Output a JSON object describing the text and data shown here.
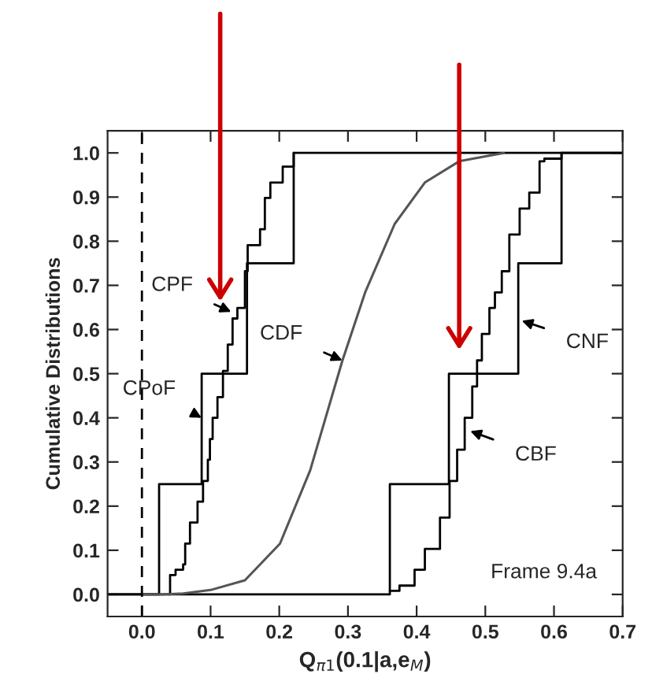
{
  "chart_data": {
    "type": "line",
    "xlabel": "Q$_{π1}$(0.1|a,e$_{M}$)",
    "ylabel": "Cumulative Distributions",
    "series": [
      {
        "type": "step",
        "color": "#000000",
        "x": [
          -0.05,
          0.025,
          0.087,
          0.153,
          0.221,
          0.7
        ],
        "values": [
          0,
          0.25,
          0.5,
          0.75,
          1.0,
          1.0
        ]
      },
      {
        "type": "step",
        "color": "#000000",
        "x": [
          -0.05,
          0.361,
          0.447,
          0.548,
          0.611,
          0.7
        ],
        "values": [
          0,
          0.25,
          0.5,
          0.75,
          1.0,
          1.0
        ]
      },
      {
        "type": "step",
        "color": "#000000",
        "x": [
          0.039,
          0.041,
          0.049,
          0.06,
          0.063,
          0.07,
          0.081,
          0.089,
          0.096,
          0.099,
          0.103,
          0.11,
          0.118,
          0.125,
          0.132,
          0.139,
          0.15,
          0.154,
          0.172,
          0.179,
          0.187,
          0.205,
          0.221
        ],
        "values": [
          0,
          0.044,
          0.056,
          0.068,
          0.115,
          0.163,
          0.21,
          0.257,
          0.305,
          0.352,
          0.4,
          0.447,
          0.506,
          0.566,
          0.625,
          0.649,
          0.732,
          0.791,
          0.827,
          0.898,
          0.933,
          0.969,
          1.0
        ]
      },
      {
        "type": "step",
        "color": "#000000",
        "x": [
          0.361,
          0.375,
          0.397,
          0.412,
          0.434,
          0.448,
          0.459,
          0.47,
          0.481,
          0.488,
          0.495,
          0.506,
          0.514,
          0.524,
          0.535,
          0.55,
          0.564,
          0.579,
          0.586,
          0.611
        ],
        "values": [
          0.008,
          0.02,
          0.056,
          0.103,
          0.174,
          0.257,
          0.328,
          0.4,
          0.471,
          0.53,
          0.59,
          0.649,
          0.684,
          0.732,
          0.815,
          0.874,
          0.91,
          0.981,
          0.987,
          1.0
        ]
      },
      {
        "color": "#555555",
        "x": [
          0.0,
          0.03,
          0.06,
          0.1,
          0.15,
          0.201,
          0.245,
          0.292,
          0.325,
          0.368,
          0.412,
          0.462,
          0.527
        ],
        "values": [
          0,
          0,
          0.002,
          0.01,
          0.032,
          0.115,
          0.281,
          0.53,
          0.684,
          0.839,
          0.933,
          0.981,
          1.0
        ]
      }
    ],
    "xlim": [
      -0.05,
      0.7
    ],
    "xticks": [
      {
        "value": 0.0,
        "label": "0.0"
      },
      0.1,
      0.2,
      0.3,
      0.4,
      0.5,
      0.6,
      0.7
    ],
    "ylim": [
      -0.05,
      1.05
    ],
    "yticks": [
      {
        "value": 0.0,
        "label": "0.0"
      },
      0.1,
      0.2,
      0.3,
      0.4,
      0.5,
      0.6,
      0.7,
      0.8,
      0.9,
      {
        "value": 1.0,
        "label": "1.0"
      }
    ],
    "ref_lines": [
      {
        "axis": "x",
        "value": 0.0,
        "line_style": "dashed",
        "color": "#000000"
      }
    ],
    "annotations": [
      {
        "text": "CPF",
        "x": 0.13,
        "y": 0.64
      },
      {
        "text": "CDF",
        "x": 0.292,
        "y": 0.53
      },
      {
        "text": "CPoF",
        "x": 0.087,
        "y": 0.4
      },
      {
        "text": "CBF",
        "x": 0.478,
        "y": 0.37
      },
      {
        "text": "CNF",
        "x": 0.553,
        "y": 0.62
      },
      "Frame 9.4a"
    ],
    "grid": false,
    "legend": false
  }
}
